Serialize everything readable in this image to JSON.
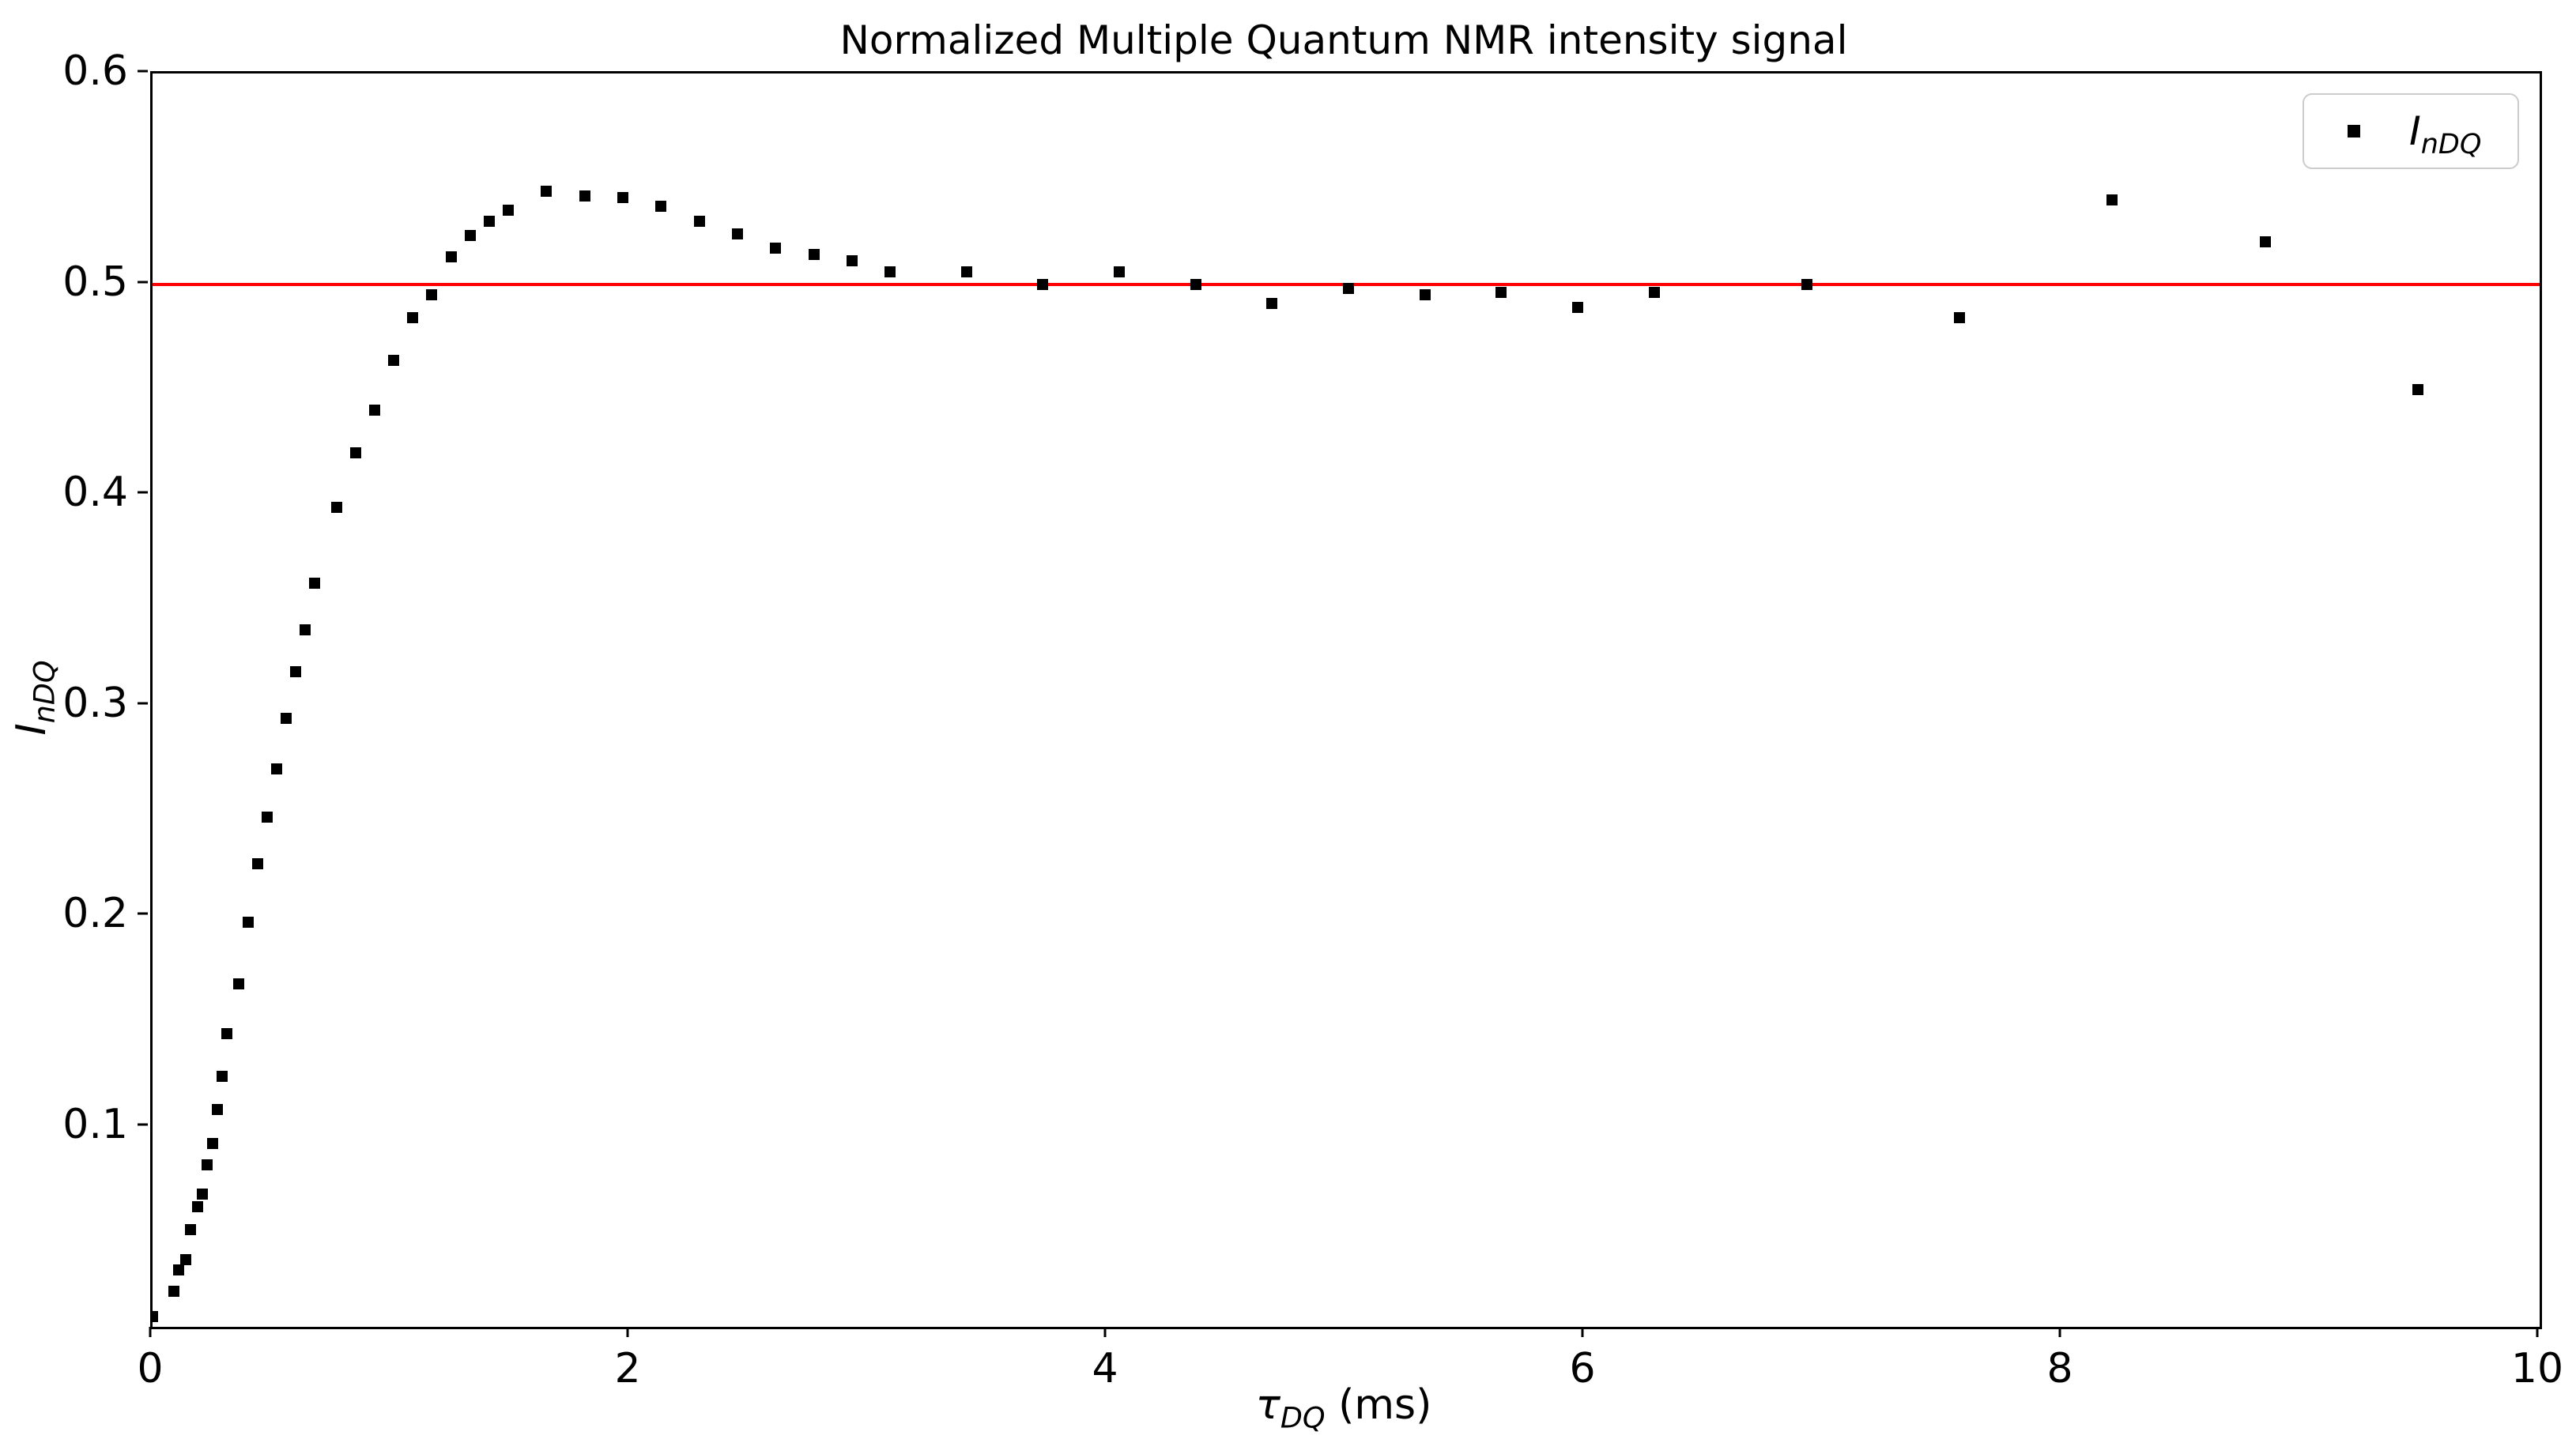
{
  "chart_data": {
    "type": "scatter",
    "title": "Normalized Multiple Quantum NMR intensity signal",
    "xlabel": {
      "symbol": "τ",
      "subscript": "DQ",
      "unit": " (ms)"
    },
    "ylabel": {
      "symbol": "I",
      "subscript": "nDQ"
    },
    "xlim": [
      0,
      10
    ],
    "ylim": [
      0.005,
      0.6
    ],
    "xticks": [
      0,
      2,
      4,
      6,
      8,
      10
    ],
    "yticks": [
      0.1,
      0.2,
      0.3,
      0.4,
      0.5,
      0.6
    ],
    "grid": false,
    "marker_color": "#000000",
    "marker_shape": "square",
    "reference_line": {
      "y": 0.5,
      "color": "#ff0000"
    },
    "legend": {
      "position": "upper right",
      "entries": [
        {
          "label_main": "I",
          "label_sub": "nDQ",
          "marker": "black-square"
        }
      ]
    },
    "series": [
      {
        "name": "InDQ",
        "x": [
          0.0,
          0.09,
          0.11,
          0.14,
          0.16,
          0.19,
          0.21,
          0.23,
          0.25,
          0.27,
          0.29,
          0.31,
          0.36,
          0.4,
          0.44,
          0.48,
          0.52,
          0.56,
          0.6,
          0.64,
          0.68,
          0.77,
          0.85,
          0.93,
          1.01,
          1.09,
          1.17,
          1.25,
          1.33,
          1.41,
          1.49,
          1.65,
          1.81,
          1.97,
          2.13,
          2.29,
          2.45,
          2.61,
          2.77,
          2.93,
          3.09,
          3.41,
          3.73,
          4.05,
          4.37,
          4.69,
          5.01,
          5.33,
          5.65,
          5.97,
          6.29,
          6.93,
          7.57,
          8.21,
          8.85,
          9.49
        ],
        "y": [
          0.01,
          0.022,
          0.032,
          0.037,
          0.051,
          0.062,
          0.068,
          0.082,
          0.092,
          0.108,
          0.124,
          0.144,
          0.168,
          0.197,
          0.225,
          0.247,
          0.27,
          0.294,
          0.316,
          0.336,
          0.358,
          0.394,
          0.42,
          0.44,
          0.464,
          0.484,
          0.495,
          0.513,
          0.523,
          0.53,
          0.535,
          0.544,
          0.542,
          0.541,
          0.537,
          0.53,
          0.524,
          0.517,
          0.514,
          0.511,
          0.506,
          0.506,
          0.5,
          0.506,
          0.5,
          0.491,
          0.498,
          0.495,
          0.496,
          0.489,
          0.496,
          0.5,
          0.484,
          0.54,
          0.52,
          0.45
        ]
      }
    ]
  }
}
